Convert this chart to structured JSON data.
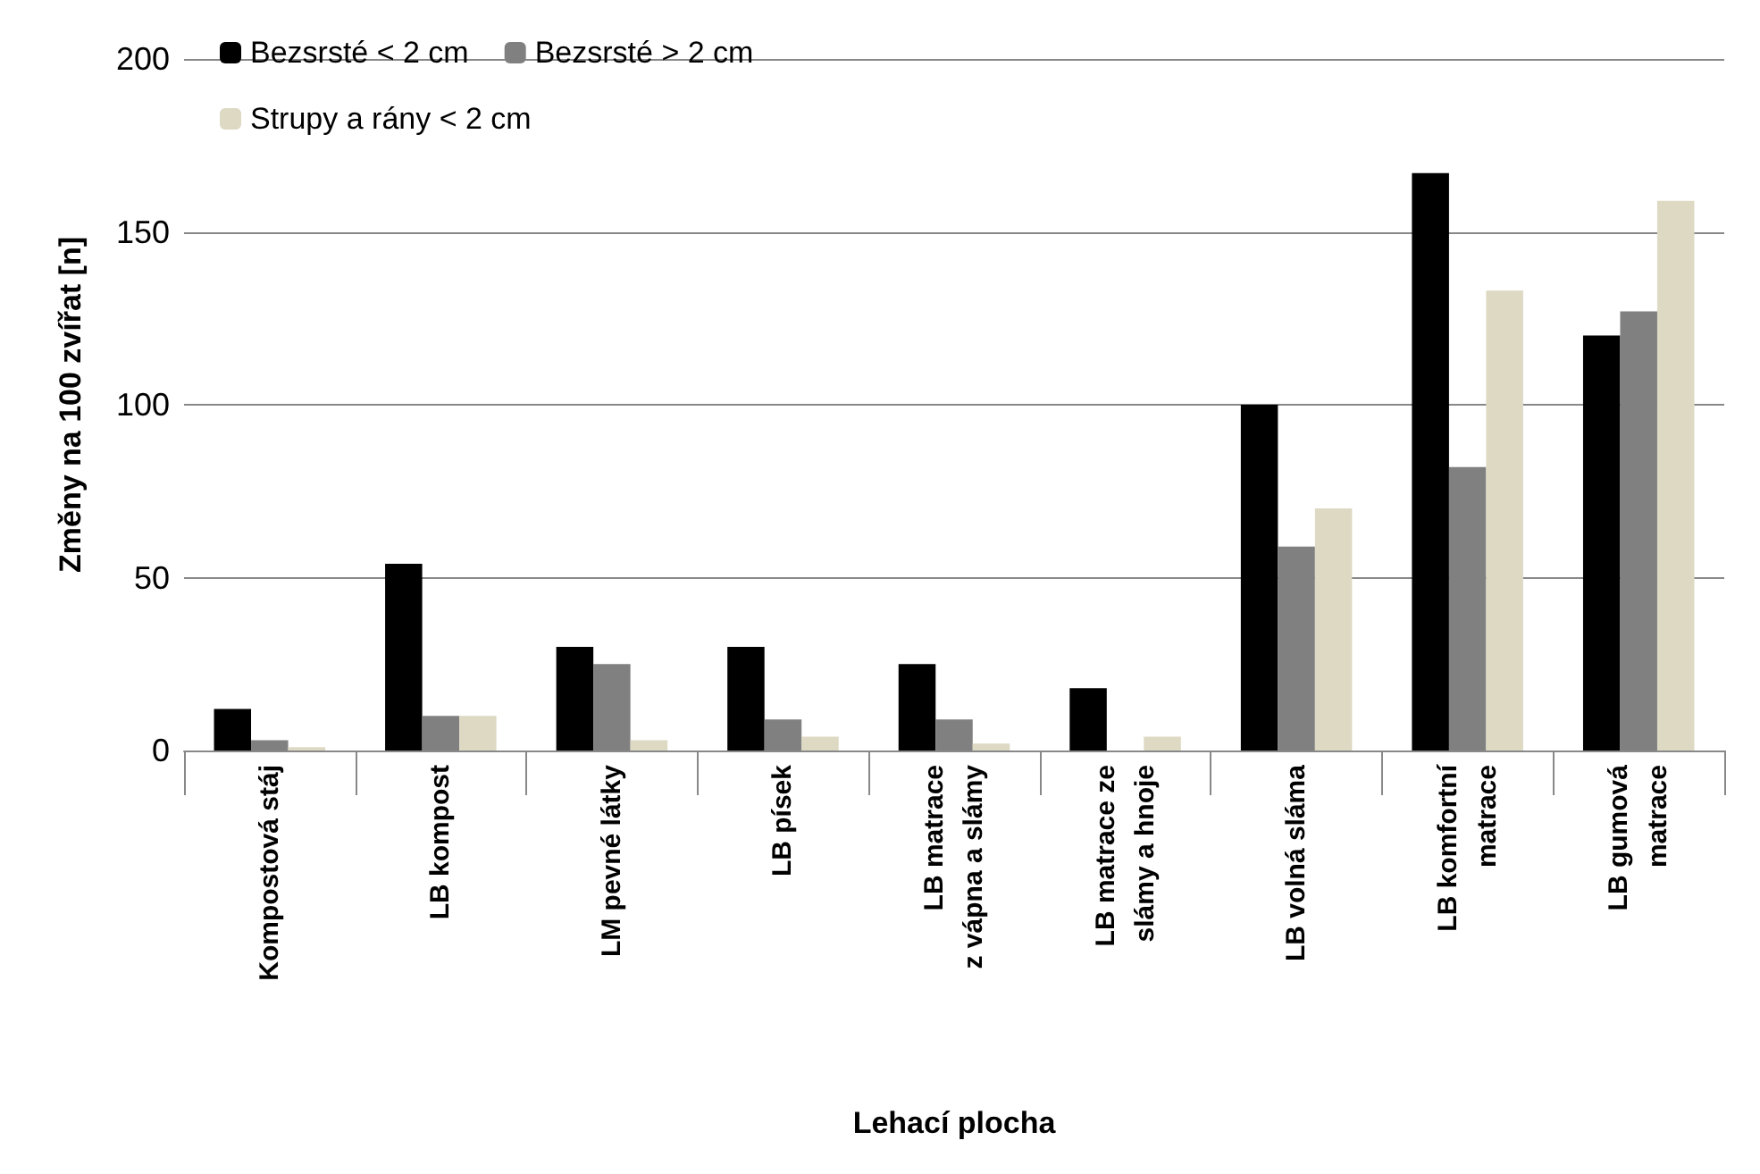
{
  "chart_data": {
    "type": "bar",
    "xlabel": "Lehací plocha",
    "ylabel": "Změny na 100 zvířat [n]",
    "categories": [
      "Kompostová stáj",
      "LB kompost",
      "LM pevné látky",
      "LB písek",
      "LB matrace\nz vápna a slámy",
      "LB matrace ze\nslámy a hnoje",
      "LB volná sláma",
      "LB komfortní\nmatrace",
      "LB gumová\nmatrace"
    ],
    "series": [
      {
        "name": "Bezsrsté < 2 cm",
        "color": "#000000",
        "values": [
          12,
          54,
          30,
          30,
          25,
          18,
          100,
          167,
          120
        ]
      },
      {
        "name": "Bezsrsté > 2 cm",
        "color": "#808080",
        "values": [
          3,
          10,
          25,
          9,
          9,
          0,
          59,
          82,
          127
        ]
      },
      {
        "name": "Strupy a rány < 2 cm",
        "color": "#ddd9c3",
        "values": [
          1,
          10,
          3,
          4,
          2,
          4,
          70,
          133,
          159
        ]
      }
    ],
    "ylim": [
      0,
      200
    ],
    "yticks": [
      0,
      50,
      100,
      150,
      200
    ],
    "grid": "y",
    "legend": "top left"
  }
}
